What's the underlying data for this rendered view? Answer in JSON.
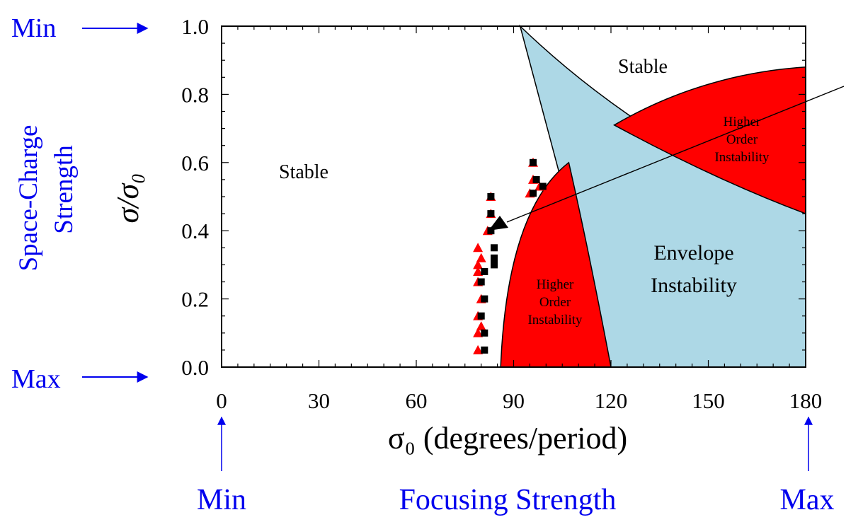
{
  "chart_data": {
    "type": "region-map",
    "xlabel": "σ₀ (degrees/period)",
    "ylabel": "σ/σ₀",
    "xlim": [
      0,
      180
    ],
    "ylim": [
      0,
      1
    ],
    "x_ticks": [
      "0",
      "30",
      "60",
      "90",
      "120",
      "150",
      "180"
    ],
    "y_ticks": [
      "0.0",
      "0.2",
      "0.4",
      "0.6",
      "0.8",
      "1.0"
    ],
    "regions": [
      {
        "label": "Stable",
        "x": 35,
        "y": 0.57
      },
      {
        "label": "Stable",
        "x": 126,
        "y": 0.88
      },
      {
        "label": [
          "Higher",
          "Order",
          "Instability"
        ],
        "x": 102,
        "y": 0.19
      },
      {
        "label": [
          "Higher",
          "Order",
          "Instability"
        ],
        "x": 160,
        "y": 0.66
      },
      {
        "label": [
          "Envelope",
          "Instability"
        ],
        "x": 138,
        "y": 0.32
      }
    ],
    "colors": {
      "envelope": "#add8e6",
      "higher_order": "#ff0000",
      "arrow": "#0000ee"
    },
    "series": [
      {
        "marker": "triangle",
        "color": "#ff0000",
        "points": [
          [
            79,
            0.05
          ],
          [
            79,
            0.1
          ],
          [
            80,
            0.12
          ],
          [
            79,
            0.15
          ],
          [
            80,
            0.2
          ],
          [
            79,
            0.25
          ],
          [
            79,
            0.28
          ],
          [
            79,
            0.3
          ],
          [
            80,
            0.32
          ],
          [
            79,
            0.35
          ],
          [
            82,
            0.4
          ],
          [
            83,
            0.45
          ],
          [
            83,
            0.5
          ],
          [
            95,
            0.51
          ],
          [
            96,
            0.55
          ],
          [
            96,
            0.6
          ],
          [
            98,
            0.53
          ]
        ]
      },
      {
        "marker": "square",
        "color": "#000000",
        "points": [
          [
            81,
            0.05
          ],
          [
            81,
            0.1
          ],
          [
            80,
            0.15
          ],
          [
            81,
            0.2
          ],
          [
            80,
            0.25
          ],
          [
            81,
            0.28
          ],
          [
            84,
            0.3
          ],
          [
            84,
            0.32
          ],
          [
            84,
            0.35
          ],
          [
            83,
            0.4
          ],
          [
            83,
            0.45
          ],
          [
            83,
            0.5
          ],
          [
            96,
            0.51
          ],
          [
            97,
            0.55
          ],
          [
            96,
            0.6
          ],
          [
            99,
            0.53
          ]
        ]
      }
    ]
  },
  "annotations": {
    "y_axis_caption": "Space-Charge",
    "y_axis_caption_2": "Strength",
    "y_top": "Min",
    "y_bottom": "Max",
    "x_caption": "Focusing Strength",
    "x_left": "Min",
    "x_right": "Max"
  }
}
